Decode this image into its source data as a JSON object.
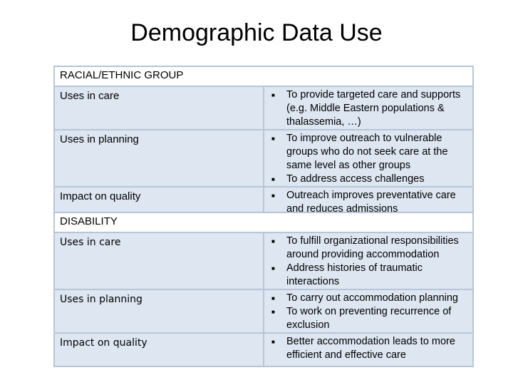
{
  "title": "Demographic Data Use",
  "bullet_icon": "square-bullet-icon",
  "sections": [
    {
      "header": "RACIAL/ETHNIC GROUP",
      "rows": [
        {
          "label": "Uses in care",
          "bullets": [
            "To provide targeted care and supports (e.g. Middle Eastern populations & thalassemia, …)"
          ]
        },
        {
          "label": "Uses in planning",
          "bullets": [
            "To improve outreach to vulnerable groups who do not seek care at the same level as other groups",
            "To address access challenges"
          ]
        },
        {
          "label": "Impact on quality",
          "bullets": [
            "Outreach improves preventative care and reduces admissions"
          ]
        }
      ]
    },
    {
      "header": "DISABILITY",
      "rows": [
        {
          "label": "Uses in care",
          "bullets": [
            "To fulfill organizational responsibilities around providing accommodation",
            "Address histories of traumatic interactions"
          ]
        },
        {
          "label": "Uses in planning",
          "bullets": [
            "To carry out accommodation planning",
            "To work on preventing recurrence of exclusion"
          ]
        },
        {
          "label": "Impact on quality",
          "bullets": [
            "Better accommodation leads to more efficient and effective care"
          ]
        }
      ]
    }
  ]
}
